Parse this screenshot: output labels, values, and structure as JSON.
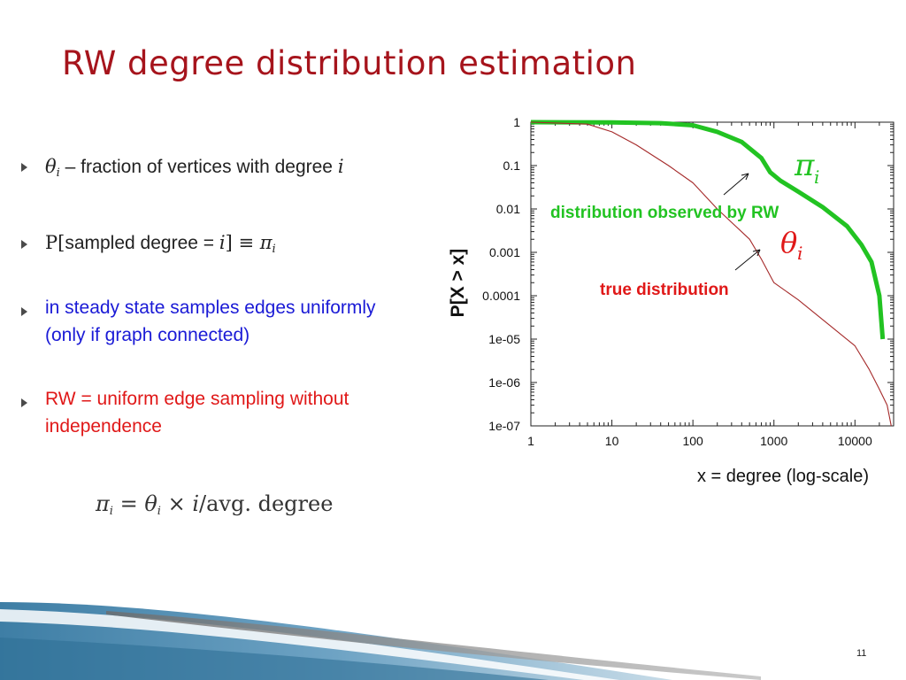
{
  "slide": {
    "title": "RW degree distribution estimation",
    "page_number": "11",
    "bullets": [
      {
        "math_symbol": "θ",
        "math_sub": "i",
        "text": " – fraction of vertices with degree ",
        "math_tail": "i",
        "color": "#222222"
      },
      {
        "prefix": "P[",
        "text": "sampled degree = ",
        "math_var": "i",
        "suffix": "] ≡ ",
        "math_symbol": "π",
        "math_sub": "i",
        "color": "#222222"
      },
      {
        "lines": [
          "in steady state samples edges uniformly",
          "(only if graph connected)"
        ],
        "color": "#1a1ad6"
      },
      {
        "lines": [
          "RW = uniform edge sampling without",
          "independence"
        ],
        "color": "#e01818"
      }
    ],
    "formula": {
      "lhs": "π",
      "lhs_sub": "i",
      "eq": " = ",
      "theta": "θ",
      "theta_sub": "i",
      "times": " × ",
      "var": "i",
      "rest": "/avg. degree"
    }
  },
  "chart_data": {
    "type": "line",
    "xscale": "log",
    "yscale": "log",
    "xlim": [
      1,
      30000
    ],
    "ylim": [
      1e-07,
      1
    ],
    "xticks": [
      "1",
      "10",
      "100",
      "1000",
      "10000"
    ],
    "yticks": [
      "1",
      "0.1",
      "0.01",
      "0.001",
      "0.0001",
      "1e-05",
      "1e-06",
      "1e-07"
    ],
    "xlabel": "x = degree (log-scale)",
    "ylabel": "P[X > x]",
    "grid": false,
    "series": [
      {
        "name": "distribution observed by RW",
        "color": "#22c322",
        "symbol": "π",
        "symbol_sub": "i",
        "x": [
          1,
          10,
          40,
          100,
          200,
          400,
          700,
          900,
          1200,
          2000,
          4000,
          8000,
          12000,
          16000,
          20000,
          22000
        ],
        "y": [
          1,
          0.99,
          0.95,
          0.85,
          0.6,
          0.35,
          0.15,
          0.07,
          0.045,
          0.025,
          0.011,
          0.004,
          0.0015,
          0.0006,
          0.0001,
          1e-05
        ]
      },
      {
        "name": "true distribution",
        "color": "#a52a2a",
        "symbol": "θ",
        "symbol_sub": "i",
        "x": [
          1,
          5,
          10,
          20,
          50,
          100,
          200,
          500,
          700,
          1000,
          2000,
          5000,
          10000,
          15000,
          20000,
          25000,
          28000
        ],
        "y": [
          1,
          0.9,
          0.6,
          0.3,
          0.1,
          0.04,
          0.01,
          0.002,
          0.0007,
          0.0002,
          8e-05,
          2e-05,
          7e-06,
          2e-06,
          7e-07,
          3e-07,
          1e-07
        ]
      }
    ]
  }
}
